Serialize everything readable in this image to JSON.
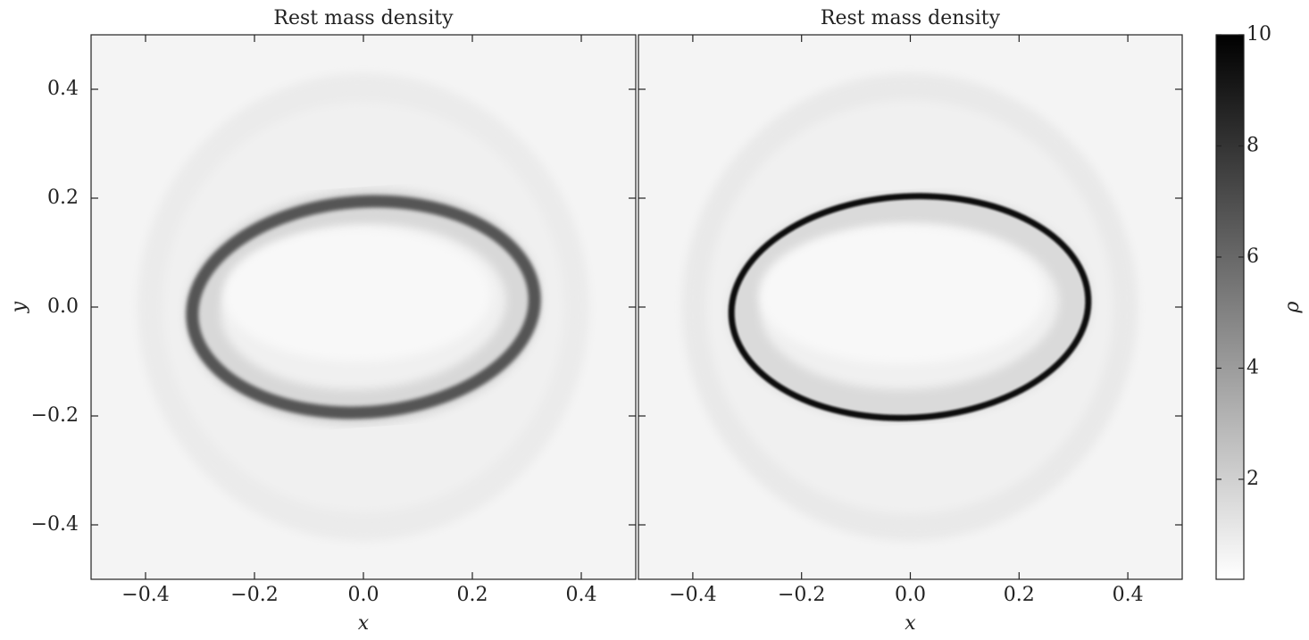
{
  "chart_data": [
    {
      "type": "image",
      "title": "Rest mass density",
      "xlabel": "x",
      "ylabel": "y",
      "xlim": [
        -0.5,
        0.5
      ],
      "ylim": [
        -0.5,
        0.5
      ],
      "xticks": [
        {
          "value": -0.4,
          "label": "−0.4"
        },
        {
          "value": -0.2,
          "label": "−0.2"
        },
        {
          "value": 0,
          "label": "0.0"
        },
        0.2,
        0.4
      ],
      "yticks": [
        {
          "value": -0.4,
          "label": "−0.4"
        },
        {
          "value": -0.2,
          "label": "−0.2"
        },
        {
          "value": 0,
          "label": "0.0"
        },
        0.2,
        0.4
      ]
    },
    {
      "type": "image",
      "title": "Rest mass density",
      "xlabel": "x",
      "xlim": [
        -0.5,
        0.5
      ],
      "ylim": [
        -0.5,
        0.5
      ],
      "xticks": [
        {
          "value": -0.4,
          "label": "−0.4"
        },
        {
          "value": -0.2,
          "label": "−0.2"
        },
        {
          "value": 0,
          "label": "0.0"
        },
        0.2,
        0.4
      ],
      "yticks": [
        -0.4,
        -0.2,
        0,
        0.2,
        0.4
      ],
      "colorbar": {
        "label": "ρ",
        "lim": [
          0.2,
          10
        ],
        "ticks": [
          2,
          4,
          6,
          8,
          10
        ],
        "colors": [
          "#ffffff",
          "#000000"
        ]
      }
    }
  ]
}
